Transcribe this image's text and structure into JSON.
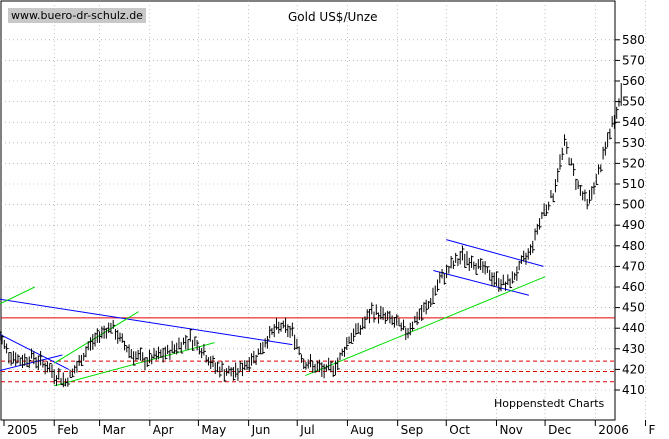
{
  "header": {
    "watermark": "www.buero-dr-schulz.de",
    "title": "Gold US$/Unze"
  },
  "footer": {
    "source": "Hoppenstedt Charts"
  },
  "colors": {
    "price": "#000000",
    "resistance": "#e00000",
    "support": "#e00000",
    "trend_down": "#0000ff",
    "trend_up": "#00dd00",
    "grid": "#999999"
  },
  "chart_data": {
    "type": "line",
    "title": "Gold US$/Unze",
    "ylim": [
      403,
      584
    ],
    "y_ticks": [
      410,
      420,
      430,
      440,
      450,
      460,
      470,
      480,
      490,
      500,
      510,
      520,
      530,
      540,
      550,
      560,
      570,
      580
    ],
    "x_labels": [
      "2005",
      "Feb",
      "Mar",
      "Apr",
      "May",
      "Jun",
      "Jul",
      "Aug",
      "Sep",
      "Oct",
      "Nov",
      "Dec",
      "2006",
      "F"
    ],
    "grid": true,
    "series": [
      {
        "style": "ohlc",
        "x": [
          "2004-12-28",
          "2005-01-04",
          "2005-01-11",
          "2005-01-18",
          "2005-01-25",
          "2005-02-01",
          "2005-02-08",
          "2005-02-15",
          "2005-02-22",
          "2005-03-01",
          "2005-03-08",
          "2005-03-15",
          "2005-03-22",
          "2005-03-29",
          "2005-04-05",
          "2005-04-12",
          "2005-04-19",
          "2005-04-26",
          "2005-05-03",
          "2005-05-10",
          "2005-05-17",
          "2005-05-24",
          "2005-05-31",
          "2005-06-07",
          "2005-06-14",
          "2005-06-21",
          "2005-06-28",
          "2005-07-05",
          "2005-07-12",
          "2005-07-19",
          "2005-07-26",
          "2005-08-02",
          "2005-08-09",
          "2005-08-16",
          "2005-08-23",
          "2005-08-30",
          "2005-09-06",
          "2005-09-13",
          "2005-09-20",
          "2005-09-27",
          "2005-10-04",
          "2005-10-11",
          "2005-10-18",
          "2005-10-25",
          "2005-11-01",
          "2005-11-08",
          "2005-11-15",
          "2005-11-22",
          "2005-11-29",
          "2005-12-06",
          "2005-12-13",
          "2005-12-20",
          "2005-12-27",
          "2006-01-03",
          "2006-01-10",
          "2006-01-17"
        ],
        "values": [
          438,
          428,
          424,
          426,
          423,
          418,
          414,
          421,
          431,
          437,
          441,
          433,
          427,
          424,
          426,
          428,
          432,
          435,
          430,
          422,
          419,
          418,
          423,
          428,
          437,
          441,
          438,
          424,
          421,
          419,
          423,
          435,
          440,
          448,
          446,
          443,
          438,
          445,
          451,
          463,
          470,
          475,
          472,
          468,
          463,
          461,
          469,
          478,
          495,
          505,
          530,
          512,
          500,
          515,
          535,
          553
        ]
      }
    ],
    "resistance_level": 445,
    "support_levels": [
      424,
      419,
      414
    ],
    "trendlines": [
      {
        "color": "blue",
        "from": [
          "2004-12-22",
          455
        ],
        "to": [
          "2005-06-28",
          432
        ]
      },
      {
        "color": "blue",
        "from": [
          "2004-12-22",
          440
        ],
        "to": [
          "2005-02-10",
          420
        ]
      },
      {
        "color": "blue",
        "from": [
          "2004-12-22",
          418
        ],
        "to": [
          "2005-02-06",
          427
        ]
      },
      {
        "color": "blue",
        "from": [
          "2005-10-01",
          483
        ],
        "to": [
          "2005-11-30",
          470
        ]
      },
      {
        "color": "blue",
        "from": [
          "2005-09-23",
          468
        ],
        "to": [
          "2005-11-21",
          456
        ]
      },
      {
        "color": "green",
        "from": [
          "2004-12-22",
          449
        ],
        "to": [
          "2005-01-20",
          460
        ]
      },
      {
        "color": "green",
        "from": [
          "2005-02-01",
          423
        ],
        "to": [
          "2005-03-25",
          448
        ]
      },
      {
        "color": "green",
        "from": [
          "2005-02-01",
          412
        ],
        "to": [
          "2005-05-11",
          433
        ]
      },
      {
        "color": "green",
        "from": [
          "2005-07-06",
          417
        ],
        "to": [
          "2005-12-01",
          465
        ]
      }
    ]
  }
}
